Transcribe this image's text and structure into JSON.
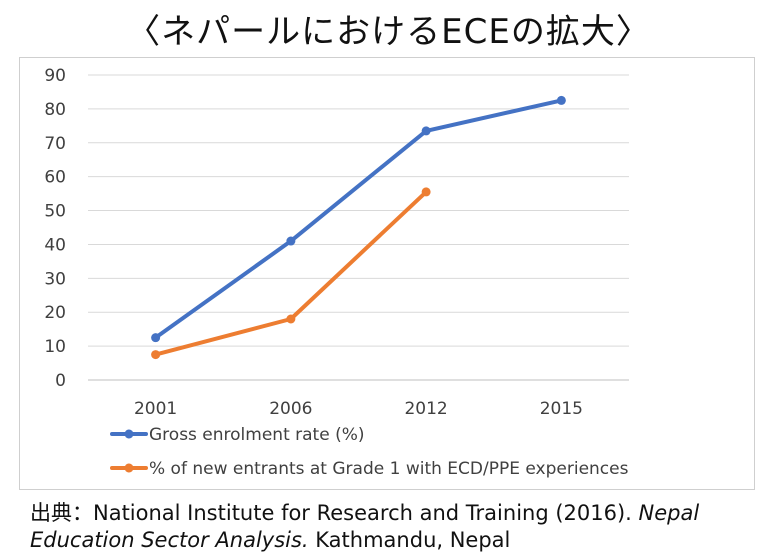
{
  "title": "〈ネパールにおけるECEの拡大〉",
  "source": {
    "prefix": "出典：National Institute for Research and Training (2016). ",
    "italic": "Nepal Education Sector Analysis.",
    "suffix": " Kathmandu, Nepal"
  },
  "chart_data": {
    "type": "line",
    "categories": [
      "2001",
      "2006",
      "2012",
      "2015"
    ],
    "ylim": [
      0,
      90
    ],
    "yticks": [
      0,
      10,
      20,
      30,
      40,
      50,
      60,
      70,
      80,
      90
    ],
    "grid": true,
    "legend_position": "bottom",
    "series": [
      {
        "name": "Gross enrolment rate (%)",
        "color": "#4472c4",
        "values": [
          12.5,
          41,
          73.5,
          82.5
        ]
      },
      {
        "name": "% of new entrants at Grade 1 with ECD/PPE experiences",
        "color": "#ed7d31",
        "values": [
          7.5,
          18,
          55.5,
          null
        ]
      }
    ]
  }
}
